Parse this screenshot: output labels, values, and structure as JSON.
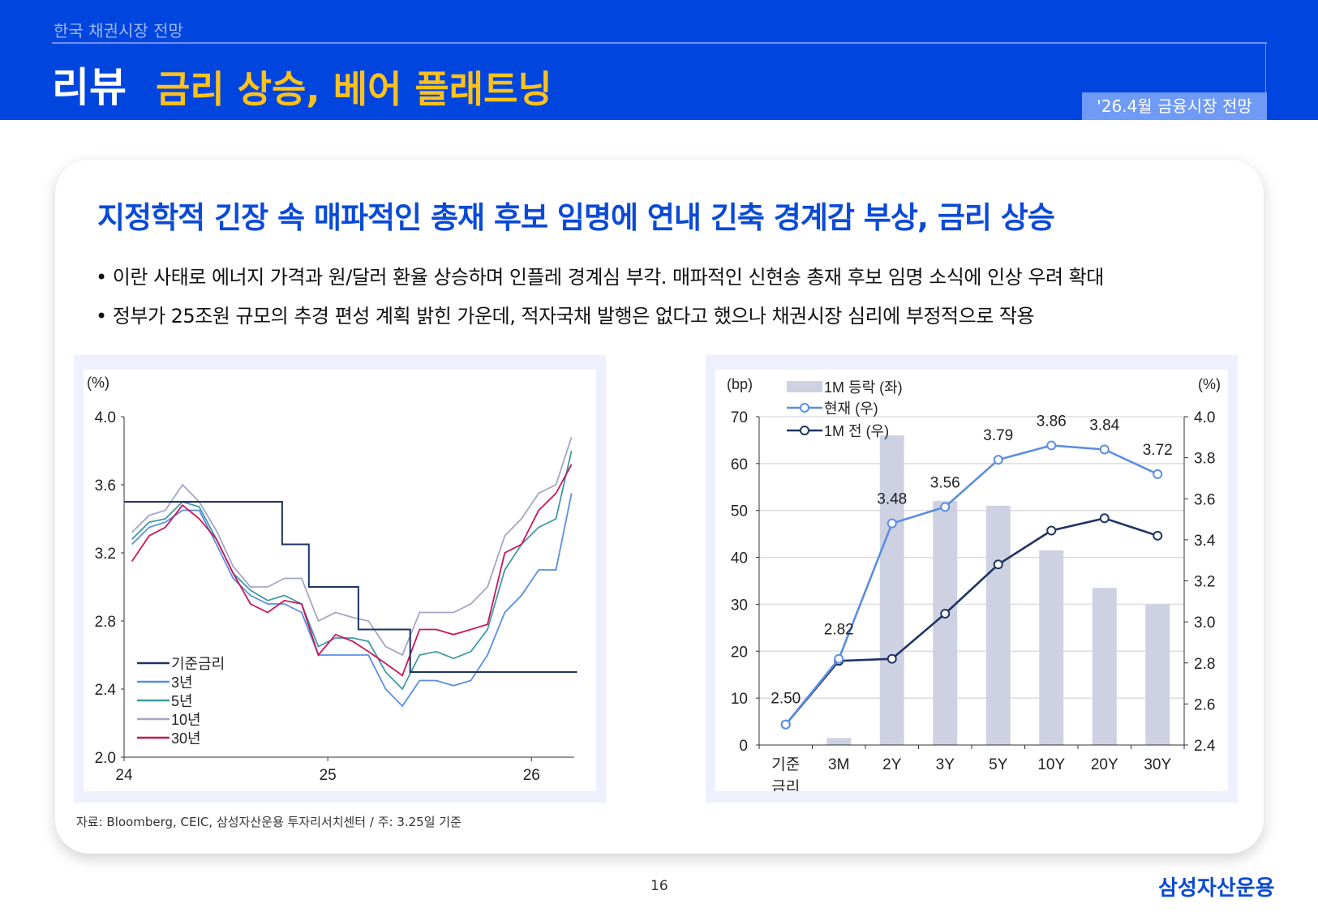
{
  "header": {
    "section": "한국 채권시장 전망",
    "title": "리뷰",
    "subtitle": "금리 상승, 베어 플래트닝",
    "badge": "'26.4월 금융시장 전망"
  },
  "main": {
    "title": "지정학적 긴장 속 매파적인 총재 후보 임명에 연내 긴축 경계감 부상, 금리 상승",
    "bullets": [
      "• 이란 사태로 에너지 가격과 원/달러 환율 상승하며 인플레 경계심 부각. 매파적인 신현송 총재 후보 임명 소식에 인상 우려 확대",
      "• 정부가 25조원 규모의 추경 편성 계획 밝힌 가운데, 적자국채 발행은 없다고 했으나 채권시장 심리에 부정적으로 작용"
    ],
    "note": "자료: Bloomberg, CEIC, 삼성자산운용 투자리서치센터 / 주: 3.25일 기준"
  },
  "footer": {
    "page": "16",
    "logo": "삼성자산운용"
  },
  "chart_data": [
    {
      "type": "line",
      "ylabel": "(%)",
      "ylim": [
        2.0,
        4.0
      ],
      "yticks": [
        "2.0",
        "2.4",
        "2.8",
        "3.2",
        "3.6",
        "4.0"
      ],
      "xticks": [
        "24",
        "25",
        "26"
      ],
      "legend_position": "bottom-left",
      "x": [
        "2024-01",
        "2024-02",
        "2024-03",
        "2024-04",
        "2024-05",
        "2024-06",
        "2024-07",
        "2024-08",
        "2024-09",
        "2024-10",
        "2024-11",
        "2024-12",
        "2025-01",
        "2025-02",
        "2025-03",
        "2025-04",
        "2025-05",
        "2025-06",
        "2025-07",
        "2025-08",
        "2025-09",
        "2025-10",
        "2025-11",
        "2025-12",
        "2026-01",
        "2026-02",
        "2026-03"
      ],
      "series": [
        {
          "name": "기준금리",
          "color": "#1f3464",
          "step": true,
          "points": [
            [
              "2024-01-01",
              3.5
            ],
            [
              "2024-10-11",
              3.5
            ],
            [
              "2024-10-11",
              3.25
            ],
            [
              "2024-11-28",
              3.25
            ],
            [
              "2024-11-28",
              3.0
            ],
            [
              "2025-02-25",
              3.0
            ],
            [
              "2025-02-25",
              2.75
            ],
            [
              "2025-05-29",
              2.75
            ],
            [
              "2025-05-29",
              2.5
            ],
            [
              "2026-03-25",
              2.5
            ]
          ]
        },
        {
          "name": "3년",
          "color": "#5b8ee0",
          "values": [
            3.25,
            3.35,
            3.38,
            3.45,
            3.45,
            3.25,
            3.05,
            2.95,
            2.9,
            2.9,
            2.85,
            2.6,
            2.6,
            2.6,
            2.6,
            2.4,
            2.3,
            2.45,
            2.45,
            2.42,
            2.45,
            2.6,
            2.85,
            2.95,
            3.1,
            3.1,
            3.55
          ]
        },
        {
          "name": "5년",
          "color": "#3f9aa6",
          "values": [
            3.28,
            3.38,
            3.4,
            3.5,
            3.47,
            3.28,
            3.08,
            2.98,
            2.92,
            2.95,
            2.9,
            2.65,
            2.7,
            2.7,
            2.68,
            2.5,
            2.4,
            2.6,
            2.62,
            2.58,
            2.62,
            2.75,
            3.1,
            3.25,
            3.35,
            3.4,
            3.8
          ]
        },
        {
          "name": "10년",
          "color": "#a4a6c6",
          "values": [
            3.32,
            3.42,
            3.45,
            3.6,
            3.5,
            3.33,
            3.12,
            3.0,
            3.0,
            3.05,
            3.05,
            2.8,
            2.85,
            2.82,
            2.8,
            2.65,
            2.6,
            2.85,
            2.85,
            2.85,
            2.9,
            3.0,
            3.3,
            3.4,
            3.55,
            3.6,
            3.88
          ]
        },
        {
          "name": "30년",
          "color": "#c8165a",
          "values": [
            3.15,
            3.3,
            3.35,
            3.48,
            3.4,
            3.28,
            3.08,
            2.9,
            2.85,
            2.92,
            2.9,
            2.6,
            2.72,
            2.68,
            2.62,
            2.55,
            2.48,
            2.75,
            2.75,
            2.72,
            2.75,
            2.78,
            3.2,
            3.25,
            3.45,
            3.55,
            3.72
          ]
        }
      ]
    },
    {
      "type": "bar+line",
      "ylabel_left": "(bp)",
      "ylabel_right": "(%)",
      "ylim_left": [
        0,
        70
      ],
      "ylim_right": [
        2.4,
        4.0
      ],
      "yticks_left": [
        "0",
        "10",
        "20",
        "30",
        "40",
        "50",
        "60",
        "70"
      ],
      "yticks_right": [
        "2.4",
        "2.6",
        "2.8",
        "3.0",
        "3.2",
        "3.4",
        "3.6",
        "3.8",
        "4.0"
      ],
      "categories": [
        "기준\n금리",
        "3M",
        "2Y",
        "3Y",
        "5Y",
        "10Y",
        "20Y",
        "30Y"
      ],
      "legend_position": "top-left",
      "bars": {
        "name": "1M 등락 (좌)",
        "color": "#cdd1e2",
        "values": [
          0,
          1.5,
          66,
          52,
          51,
          41.5,
          33.5,
          30
        ]
      },
      "series": [
        {
          "name": "현재 (우)",
          "color": "#5b8ee0",
          "values": [
            2.5,
            2.82,
            3.48,
            3.56,
            3.79,
            3.86,
            3.84,
            3.72
          ],
          "labels": [
            "2.50",
            "2.82",
            "3.48",
            "3.56",
            "3.79",
            "3.86",
            "3.84",
            "3.72"
          ]
        },
        {
          "name": "1M 전 (우)",
          "color": "#1f3464",
          "values": [
            2.5,
            2.81,
            2.82,
            3.04,
            3.28,
            3.445,
            3.505,
            3.42
          ]
        }
      ],
      "grid": true
    }
  ]
}
